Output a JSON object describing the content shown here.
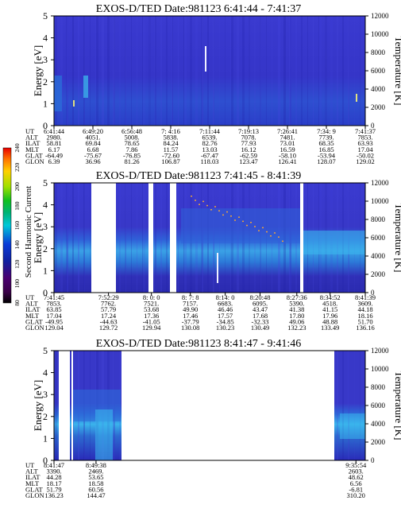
{
  "chart_data": [
    {
      "type": "heatmap",
      "title": "EXOS-D/TED",
      "date": "Date:981123",
      "time_range": "6:41:44 - 7:41:37",
      "ylabel": "Energy [eV]",
      "ylabel_right": "Temperature [K]",
      "ylim": [
        0,
        5
      ],
      "yticks": [
        "0",
        "1",
        "2",
        "3",
        "4",
        "5"
      ],
      "ylim_right": [
        0,
        12000
      ],
      "yticks_right": [
        "0",
        "2000",
        "4000",
        "6000",
        "8000",
        "10000",
        "12000"
      ],
      "row_labels": [
        "UT",
        "ALT",
        "ILAT",
        "MLT",
        "GLAT",
        "GLON"
      ],
      "columns": [
        {
          "x": 0.0,
          "values": [
            "6:41:44",
            "2980.",
            "58.81",
            "6.17",
            "-64.49",
            "6.39"
          ]
        },
        {
          "x": 0.125,
          "values": [
            "6:49:20",
            "4051.",
            "69.84",
            "6.68",
            "-75.67",
            "36.96"
          ]
        },
        {
          "x": 0.25,
          "values": [
            "6:56:48",
            "5008.",
            "78.65",
            "7.86",
            "-76.85",
            "81.26"
          ]
        },
        {
          "x": 0.375,
          "values": [
            "7: 4:16",
            "5838.",
            "84.24",
            "11.57",
            "-72.60",
            "106.87"
          ]
        },
        {
          "x": 0.5,
          "values": [
            "7:11:44",
            "6539.",
            "82.76",
            "13.03",
            "-67.47",
            "118.03"
          ]
        },
        {
          "x": 0.625,
          "values": [
            "7:19:13",
            "7078.",
            "77.93",
            "16.12",
            "-62.59",
            "123.47"
          ]
        },
        {
          "x": 0.75,
          "values": [
            "7:26:41",
            "7481.",
            "73.01",
            "16.59",
            "-58.10",
            "126.41"
          ]
        },
        {
          "x": 0.875,
          "values": [
            "7:34: 9",
            "7739.",
            "68.35",
            "16.85",
            "-53.94",
            "128.07"
          ]
        },
        {
          "x": 1.0,
          "values": [
            "7:41:37",
            "7853.",
            "63.93",
            "17.04",
            "-50.02",
            "129.02"
          ]
        }
      ]
    },
    {
      "type": "heatmap",
      "title": "EXOS-D/TED",
      "date": "Date:981123",
      "time_range": "7:41:45 - 8:41:39",
      "ylabel": "Energy [eV]",
      "ylabel_right": "Temperature [K]",
      "ylim": [
        0,
        5
      ],
      "yticks": [
        "0",
        "1",
        "2",
        "3",
        "4",
        "5"
      ],
      "ylim_right": [
        0,
        12000
      ],
      "yticks_right": [
        "0",
        "2000",
        "4000",
        "6000",
        "8000",
        "10000",
        "12000"
      ],
      "row_labels": [
        "UT",
        "ALT",
        "ILAT",
        "MLT",
        "GLAT",
        "GLON"
      ],
      "columns": [
        {
          "x": 0.0,
          "values": [
            "7:41:45",
            "7853.",
            "63.85",
            "17.04",
            "-49.95",
            "129.04"
          ]
        },
        {
          "x": 0.175,
          "values": [
            "7:52:29",
            "7762.",
            "57.79",
            "17.24",
            "-44.63",
            "129.72"
          ]
        },
        {
          "x": 0.313,
          "values": [
            "8: 0: 0",
            "7521.",
            "53.68",
            "17.36",
            "-41.05",
            "129.94"
          ]
        },
        {
          "x": 0.438,
          "values": [
            "8: 7: 8",
            "7157.",
            "49.90",
            "17.46",
            "-37.79",
            "130.08"
          ]
        },
        {
          "x": 0.55,
          "values": [
            "8:14: 0",
            "6683.",
            "46.46",
            "17.57",
            "-34.85",
            "130.23"
          ]
        },
        {
          "x": 0.662,
          "values": [
            "8:20:48",
            "6095.",
            "43.47",
            "17.68",
            "-32.33",
            "130.49"
          ]
        },
        {
          "x": 0.78,
          "values": [
            "8:27:36",
            "5390.",
            "41.38",
            "17.80",
            "49.06",
            "132.23"
          ]
        },
        {
          "x": 0.887,
          "values": [
            "8:34:52",
            "4518.",
            "41.15",
            "17.96",
            "48.88",
            "133.49"
          ]
        },
        {
          "x": 1.0,
          "values": [
            "8:41:39",
            "3609.",
            "44.18",
            "18.16",
            "51.70",
            "136.16"
          ]
        }
      ]
    },
    {
      "type": "heatmap",
      "title": "EXOS-D/TED",
      "date": "Date:981123",
      "time_range": "8:41:47 - 9:41:46",
      "ylabel": "Energy [eV]",
      "ylabel_right": "Temperature [K]",
      "ylim": [
        0,
        5
      ],
      "yticks": [
        "0",
        "1",
        "2",
        "3",
        "4",
        "5"
      ],
      "ylim_right": [
        0,
        12000
      ],
      "yticks_right": [
        "0",
        "2000",
        "4000",
        "6000",
        "8000",
        "10000",
        "12000"
      ],
      "row_labels": [
        "UT",
        "ALT",
        "ILAT",
        "MLT",
        "GLAT",
        "GLON"
      ],
      "columns": [
        {
          "x": 0.0,
          "values": [
            "8:41:47",
            "3390.",
            "44.28",
            "18.17",
            "51.79",
            "136.23"
          ]
        },
        {
          "x": 0.135,
          "values": [
            "8:49:38",
            "2469.",
            "53.65",
            "18.58",
            "60.56",
            "144.47"
          ]
        },
        {
          "x": 0.97,
          "values": [
            "9:35:54",
            "2603.",
            "48.62",
            "6.56",
            "-6.81",
            "310.20"
          ]
        }
      ]
    }
  ],
  "colorbar": {
    "label": "Second Harmonic Current",
    "range": [
      80,
      240
    ],
    "ticks": [
      "80",
      "100",
      "120",
      "140",
      "160",
      "180",
      "200",
      "220",
      "240"
    ]
  },
  "colors": {
    "background": "#3838c8",
    "low": "#0a0a78",
    "mid": "#2a6cd8",
    "high": "#3ec8e8",
    "white_gap": "#ffffff"
  }
}
